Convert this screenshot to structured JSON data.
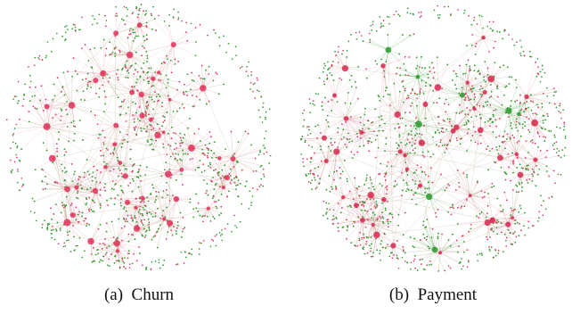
{
  "panels": [
    {
      "caption": "(a)  Churn",
      "hubs": 48,
      "colors": {
        "edge": "#8b6a3a",
        "edge_pink": "#e8789c",
        "node_green": "#2e9a2e",
        "node_red": "#e23a5f",
        "hub": "#e2315a"
      },
      "green_hubs": 0,
      "seed": 11
    },
    {
      "caption": "(b)  Payment",
      "hubs": 52,
      "colors": {
        "edge": "#8b6a3a",
        "edge_pink": "#e8789c",
        "node_green": "#2e9a2e",
        "node_red": "#e23a5f",
        "hub": "#d8284f"
      },
      "green_hubs": 8,
      "seed": 29
    }
  ]
}
